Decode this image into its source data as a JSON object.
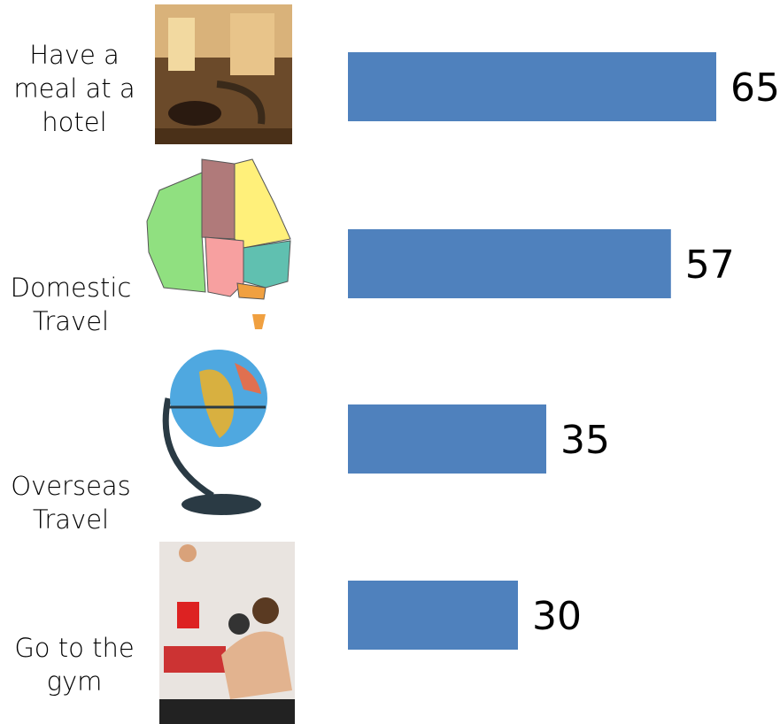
{
  "chart_data": {
    "type": "bar",
    "orientation": "horizontal",
    "categories": [
      "Have a meal at a hotel",
      "Domestic Travel",
      "Overseas Travel",
      "Go to the gym"
    ],
    "values": [
      65,
      57,
      35,
      30
    ],
    "color": "#4f81bd"
  }
}
